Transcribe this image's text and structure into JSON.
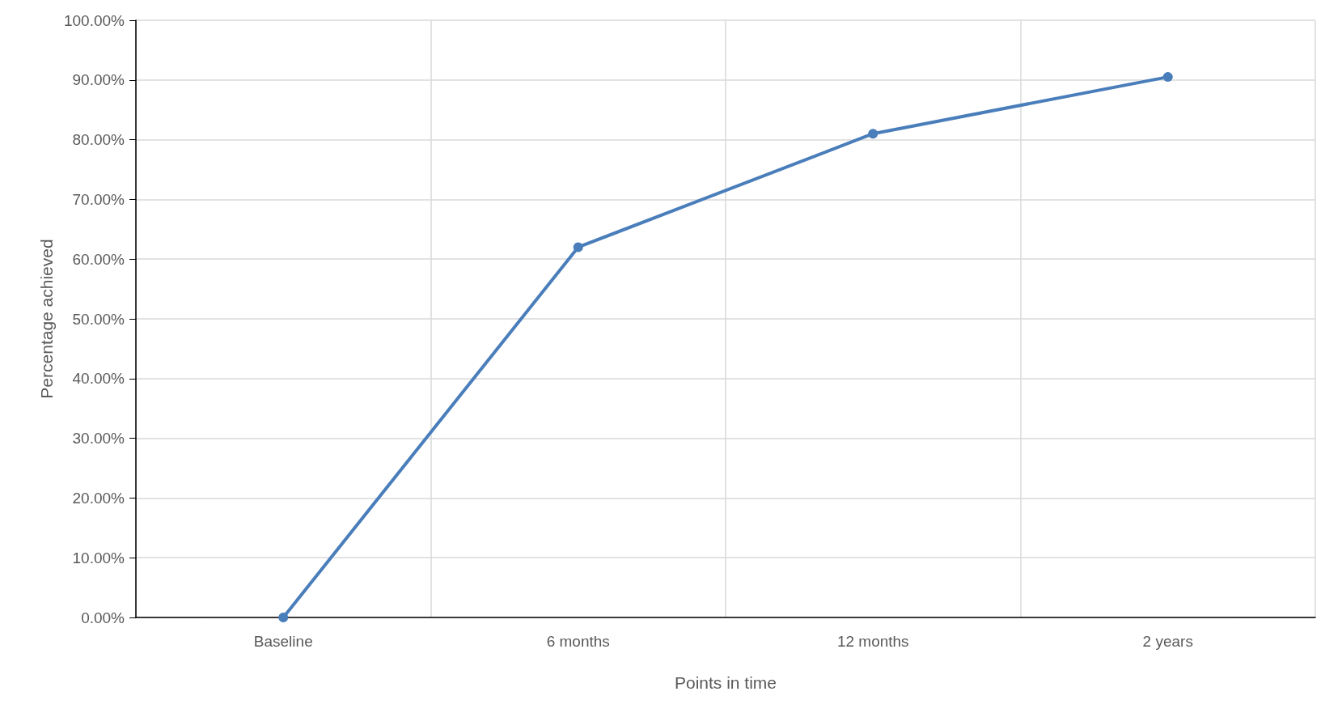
{
  "chart_data": {
    "type": "line",
    "xlabel": "Points in time",
    "ylabel": "Percentage achieved",
    "categories": [
      "Baseline",
      "6 months",
      "12 months",
      "2 years"
    ],
    "series": [
      {
        "color": "#4a7ebb",
        "values": [
          0,
          62,
          81,
          90.5
        ]
      }
    ],
    "ylim": [
      0,
      100
    ],
    "yticks": [
      {
        "value": 0,
        "label": "0.00%"
      },
      {
        "value": 10,
        "label": "10.00%"
      },
      {
        "value": 20,
        "label": "20.00%"
      },
      {
        "value": 30,
        "label": "30.00%"
      },
      {
        "value": 40,
        "label": "40.00%"
      },
      {
        "value": 50,
        "label": "50.00%"
      },
      {
        "value": 60,
        "label": "60.00%"
      },
      {
        "value": 70,
        "label": "70.00%"
      },
      {
        "value": 80,
        "label": "80.00%"
      },
      {
        "value": 90,
        "label": "90.00%"
      },
      {
        "value": 100,
        "label": "100.00%"
      }
    ],
    "grid": true,
    "marker": "circle",
    "line_style": "solid"
  }
}
